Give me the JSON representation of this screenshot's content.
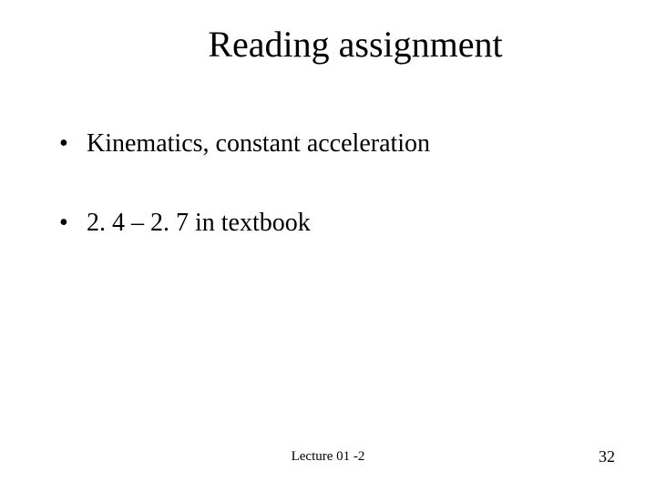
{
  "slide": {
    "title": "Reading assignment",
    "bullets": [
      "Kinematics, constant acceleration",
      "2. 4 – 2. 7 in textbook"
    ],
    "footer_center": "Lecture 01 -2",
    "page_number": "32"
  },
  "style": {
    "background_color": "#ffffff",
    "text_color": "#000000",
    "font_family": "Times New Roman",
    "title_fontsize": 40,
    "bullet_fontsize": 28,
    "footer_fontsize": 15,
    "page_number_fontsize": 18
  }
}
